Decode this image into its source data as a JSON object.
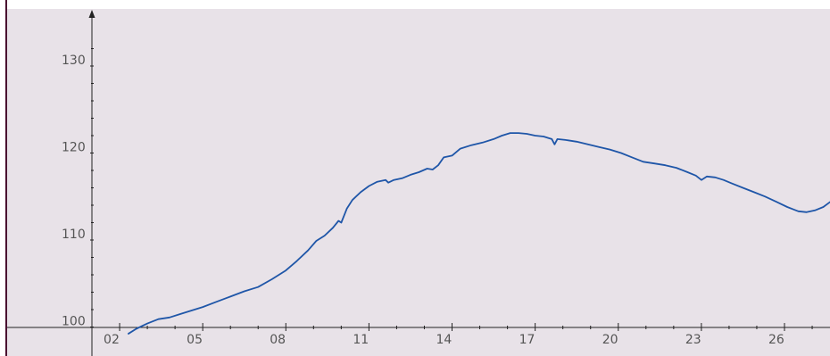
{
  "colors": {
    "plot_background": "#e8e2e8",
    "line": "#1f56a8",
    "axis": "#222222",
    "tick_label": "#555555",
    "left_border": "#4a1030"
  },
  "chart_data": {
    "type": "line",
    "title": "",
    "xlabel": "",
    "ylabel": "",
    "grid": false,
    "legend": "none",
    "xlim": [
      0.5,
      29
    ],
    "ylim": [
      99.2,
      134.5
    ],
    "x_ticks": [
      "02",
      "05",
      "08",
      "11",
      "14",
      "17",
      "20",
      "23",
      "26"
    ],
    "y_ticks": [
      "100",
      "110",
      "120",
      "130"
    ],
    "series": [
      {
        "values": [
          [
            2.3,
            99.2
          ],
          [
            2.6,
            99.8
          ],
          [
            3.0,
            100.4
          ],
          [
            3.4,
            100.9
          ],
          [
            3.8,
            101.1
          ],
          [
            4.2,
            101.5
          ],
          [
            4.6,
            101.9
          ],
          [
            5.0,
            102.3
          ],
          [
            5.5,
            102.9
          ],
          [
            6.0,
            103.5
          ],
          [
            6.5,
            104.1
          ],
          [
            7.0,
            104.6
          ],
          [
            7.5,
            105.5
          ],
          [
            8.0,
            106.5
          ],
          [
            8.4,
            107.6
          ],
          [
            8.8,
            108.8
          ],
          [
            9.1,
            109.9
          ],
          [
            9.4,
            110.5
          ],
          [
            9.7,
            111.4
          ],
          [
            9.9,
            112.2
          ],
          [
            10.0,
            112.0
          ],
          [
            10.2,
            113.6
          ],
          [
            10.4,
            114.6
          ],
          [
            10.7,
            115.5
          ],
          [
            11.0,
            116.2
          ],
          [
            11.3,
            116.7
          ],
          [
            11.6,
            116.9
          ],
          [
            11.7,
            116.6
          ],
          [
            11.9,
            116.9
          ],
          [
            12.2,
            117.1
          ],
          [
            12.5,
            117.5
          ],
          [
            12.8,
            117.8
          ],
          [
            13.1,
            118.2
          ],
          [
            13.3,
            118.1
          ],
          [
            13.5,
            118.6
          ],
          [
            13.7,
            119.5
          ],
          [
            14.0,
            119.7
          ],
          [
            14.3,
            120.5
          ],
          [
            14.7,
            120.9
          ],
          [
            15.1,
            121.2
          ],
          [
            15.5,
            121.6
          ],
          [
            15.8,
            122.0
          ],
          [
            16.1,
            122.3
          ],
          [
            16.4,
            122.3
          ],
          [
            16.7,
            122.2
          ],
          [
            17.0,
            122.0
          ],
          [
            17.3,
            121.9
          ],
          [
            17.6,
            121.6
          ],
          [
            17.7,
            121.0
          ],
          [
            17.8,
            121.6
          ],
          [
            18.1,
            121.5
          ],
          [
            18.5,
            121.3
          ],
          [
            18.9,
            121.0
          ],
          [
            19.3,
            120.7
          ],
          [
            19.7,
            120.4
          ],
          [
            20.1,
            120.0
          ],
          [
            20.5,
            119.5
          ],
          [
            20.9,
            119.0
          ],
          [
            21.3,
            118.8
          ],
          [
            21.7,
            118.6
          ],
          [
            22.1,
            118.3
          ],
          [
            22.5,
            117.8
          ],
          [
            22.8,
            117.4
          ],
          [
            23.0,
            116.9
          ],
          [
            23.2,
            117.3
          ],
          [
            23.5,
            117.2
          ],
          [
            23.8,
            116.9
          ],
          [
            24.1,
            116.5
          ],
          [
            24.5,
            116.0
          ],
          [
            24.9,
            115.5
          ],
          [
            25.3,
            115.0
          ],
          [
            25.7,
            114.4
          ],
          [
            26.1,
            113.8
          ],
          [
            26.5,
            113.3
          ],
          [
            26.8,
            113.2
          ],
          [
            27.1,
            113.4
          ],
          [
            27.4,
            113.8
          ],
          [
            27.7,
            114.5
          ],
          [
            27.9,
            115.2
          ]
        ]
      }
    ]
  }
}
